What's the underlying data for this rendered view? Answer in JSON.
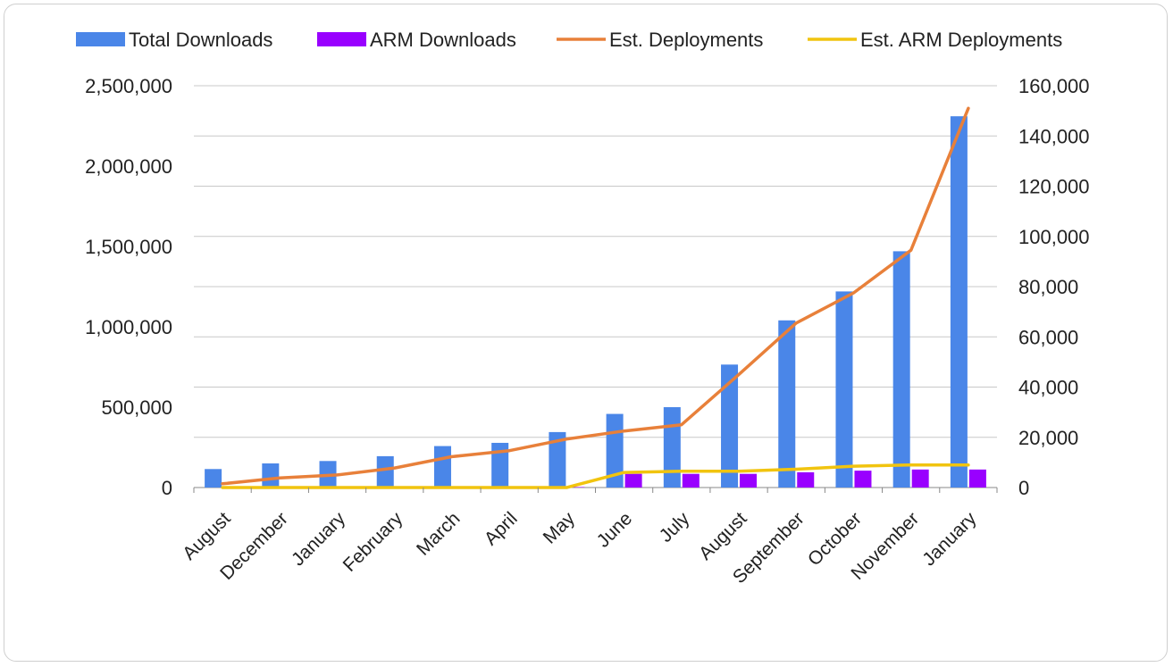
{
  "chart_data": {
    "type": "bar",
    "categories": [
      "August",
      "December",
      "January",
      "February",
      "March",
      "April",
      "May",
      "June",
      "July",
      "August",
      "September",
      "October",
      "November",
      "January"
    ],
    "series": [
      {
        "name": "Total Downloads",
        "kind": "bar",
        "axis": "left",
        "color": "#4a86e8",
        "values": [
          115000,
          150000,
          165000,
          195000,
          258000,
          278000,
          345000,
          458000,
          500000,
          765000,
          1040000,
          1220000,
          1470000,
          2310000
        ]
      },
      {
        "name": "ARM Downloads",
        "kind": "bar",
        "axis": "left",
        "color": "#9900ff",
        "values": [
          0,
          0,
          0,
          0,
          0,
          0,
          3000,
          85000,
          85000,
          85000,
          95000,
          105000,
          112000,
          112000
        ]
      },
      {
        "name": "Est. Deployments",
        "kind": "line",
        "axis": "right",
        "color": "#e8803a",
        "values": [
          1500,
          3800,
          5000,
          7800,
          12300,
          14700,
          19300,
          22500,
          25000,
          45000,
          65500,
          77500,
          94500,
          151000
        ]
      },
      {
        "name": "Est. ARM Deployments",
        "kind": "line",
        "axis": "right",
        "color": "#f1c40f",
        "values": [
          0,
          0,
          0,
          0,
          0,
          0,
          0,
          6000,
          6500,
          6500,
          7300,
          8500,
          9000,
          9000
        ]
      }
    ],
    "ylim_left": [
      0,
      2500000
    ],
    "yticks_left": [
      "0",
      "500,000",
      "1,000,000",
      "1,500,000",
      "2,000,000",
      "2,500,000"
    ],
    "ylim_right": [
      0,
      160000
    ],
    "yticks_right": [
      "0",
      "20,000",
      "40,000",
      "60,000",
      "80,000",
      "100,000",
      "120,000",
      "140,000",
      "160,000"
    ],
    "grid": true,
    "legend_position": "top"
  }
}
